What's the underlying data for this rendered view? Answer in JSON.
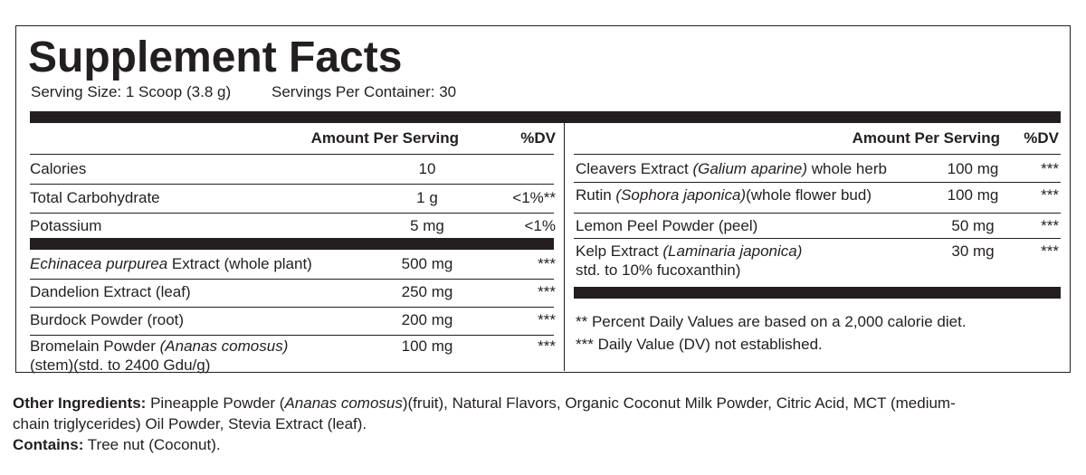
{
  "header": {
    "title": "Supplement Facts",
    "serving_size": "Serving Size: 1 Scoop (3.8 g)",
    "servings": "Servings Per Container: 30"
  },
  "left": {
    "amount_header": "Amount Per Serving",
    "dv_header": "%DV",
    "groups": [
      {
        "rows": [
          {
            "name": [
              [
                {
                  "text": "Calories"
                }
              ]
            ],
            "amount": "10"
          },
          {
            "name": [
              [
                {
                  "text": "Total Carbohydrate"
                }
              ]
            ],
            "amount": "1 g",
            "dv": "<1%**"
          },
          {
            "name": [
              [
                {
                  "text": "Potassium"
                }
              ]
            ],
            "amount": "5 mg",
            "dv": "<1%"
          }
        ]
      },
      {
        "rows": [
          {
            "name": [
              [
                {
                  "text": "Echinacea purpurea",
                  "italic": true
                },
                {
                  "text": " Extract (whole plant)"
                }
              ]
            ],
            "amount": "500 mg",
            "dv": "***"
          },
          {
            "name": [
              [
                {
                  "text": "Dandelion Extract (leaf)"
                }
              ]
            ],
            "amount": "250 mg",
            "dv": "***"
          },
          {
            "name": [
              [
                {
                  "text": "Burdock Powder (root)"
                }
              ]
            ],
            "amount": "200 mg",
            "dv": "***"
          },
          {
            "name": [
              [
                {
                  "text": "Bromelain Powder "
                },
                {
                  "text": "(Ananas comosus)",
                  "italic": true
                }
              ],
              [
                {
                  "text": "(stem)(std. to 2400 Gdu/g)"
                }
              ]
            ],
            "amount": "100 mg",
            "dv": "***"
          }
        ]
      }
    ]
  },
  "right": {
    "amount_header": "Amount Per Serving",
    "dv_header": "%DV",
    "rows": [
      {
        "name": [
          [
            {
              "text": "Cleavers Extract "
            },
            {
              "text": "(Galium aparine)",
              "italic": true
            },
            {
              "text": " whole herb"
            }
          ]
        ],
        "amount": "100 mg",
        "dv": "***"
      },
      {
        "name": [
          [
            {
              "text": "Rutin "
            },
            {
              "text": "(Sophora japonica)",
              "italic": true
            },
            {
              "text": "(whole flower bud)"
            }
          ]
        ],
        "amount": "100 mg",
        "dv": "***"
      },
      {
        "name": [
          [
            {
              "text": "Lemon Peel Powder (peel)"
            }
          ]
        ],
        "amount": "50 mg",
        "dv": "***"
      },
      {
        "name": [
          [
            {
              "text": "Kelp Extract "
            },
            {
              "text": "(Laminaria japonica)",
              "italic": true
            }
          ],
          [
            {
              "text": "std. to 10% fucoxanthin)"
            }
          ]
        ],
        "amount": "30 mg",
        "dv": "***"
      }
    ],
    "footnotes": [
      "** Percent Daily Values are based on a 2,000 calorie diet.",
      "*** Daily Value (DV) not established."
    ]
  },
  "other": {
    "ingredients_label": "Other Ingredients:",
    "ingredients": [
      {
        "text": " Pineapple Powder ("
      },
      {
        "text": "Ananas comosus",
        "italic": true
      },
      {
        "text": ")(fruit), Natural Flavors, Organic Coconut Milk Powder, Citric Acid, MCT (medium-chain triglycerides) Oil Powder, Stevia Extract (leaf)."
      }
    ],
    "contains_label": "Contains:",
    "contains": " Tree nut (Coconut)."
  }
}
